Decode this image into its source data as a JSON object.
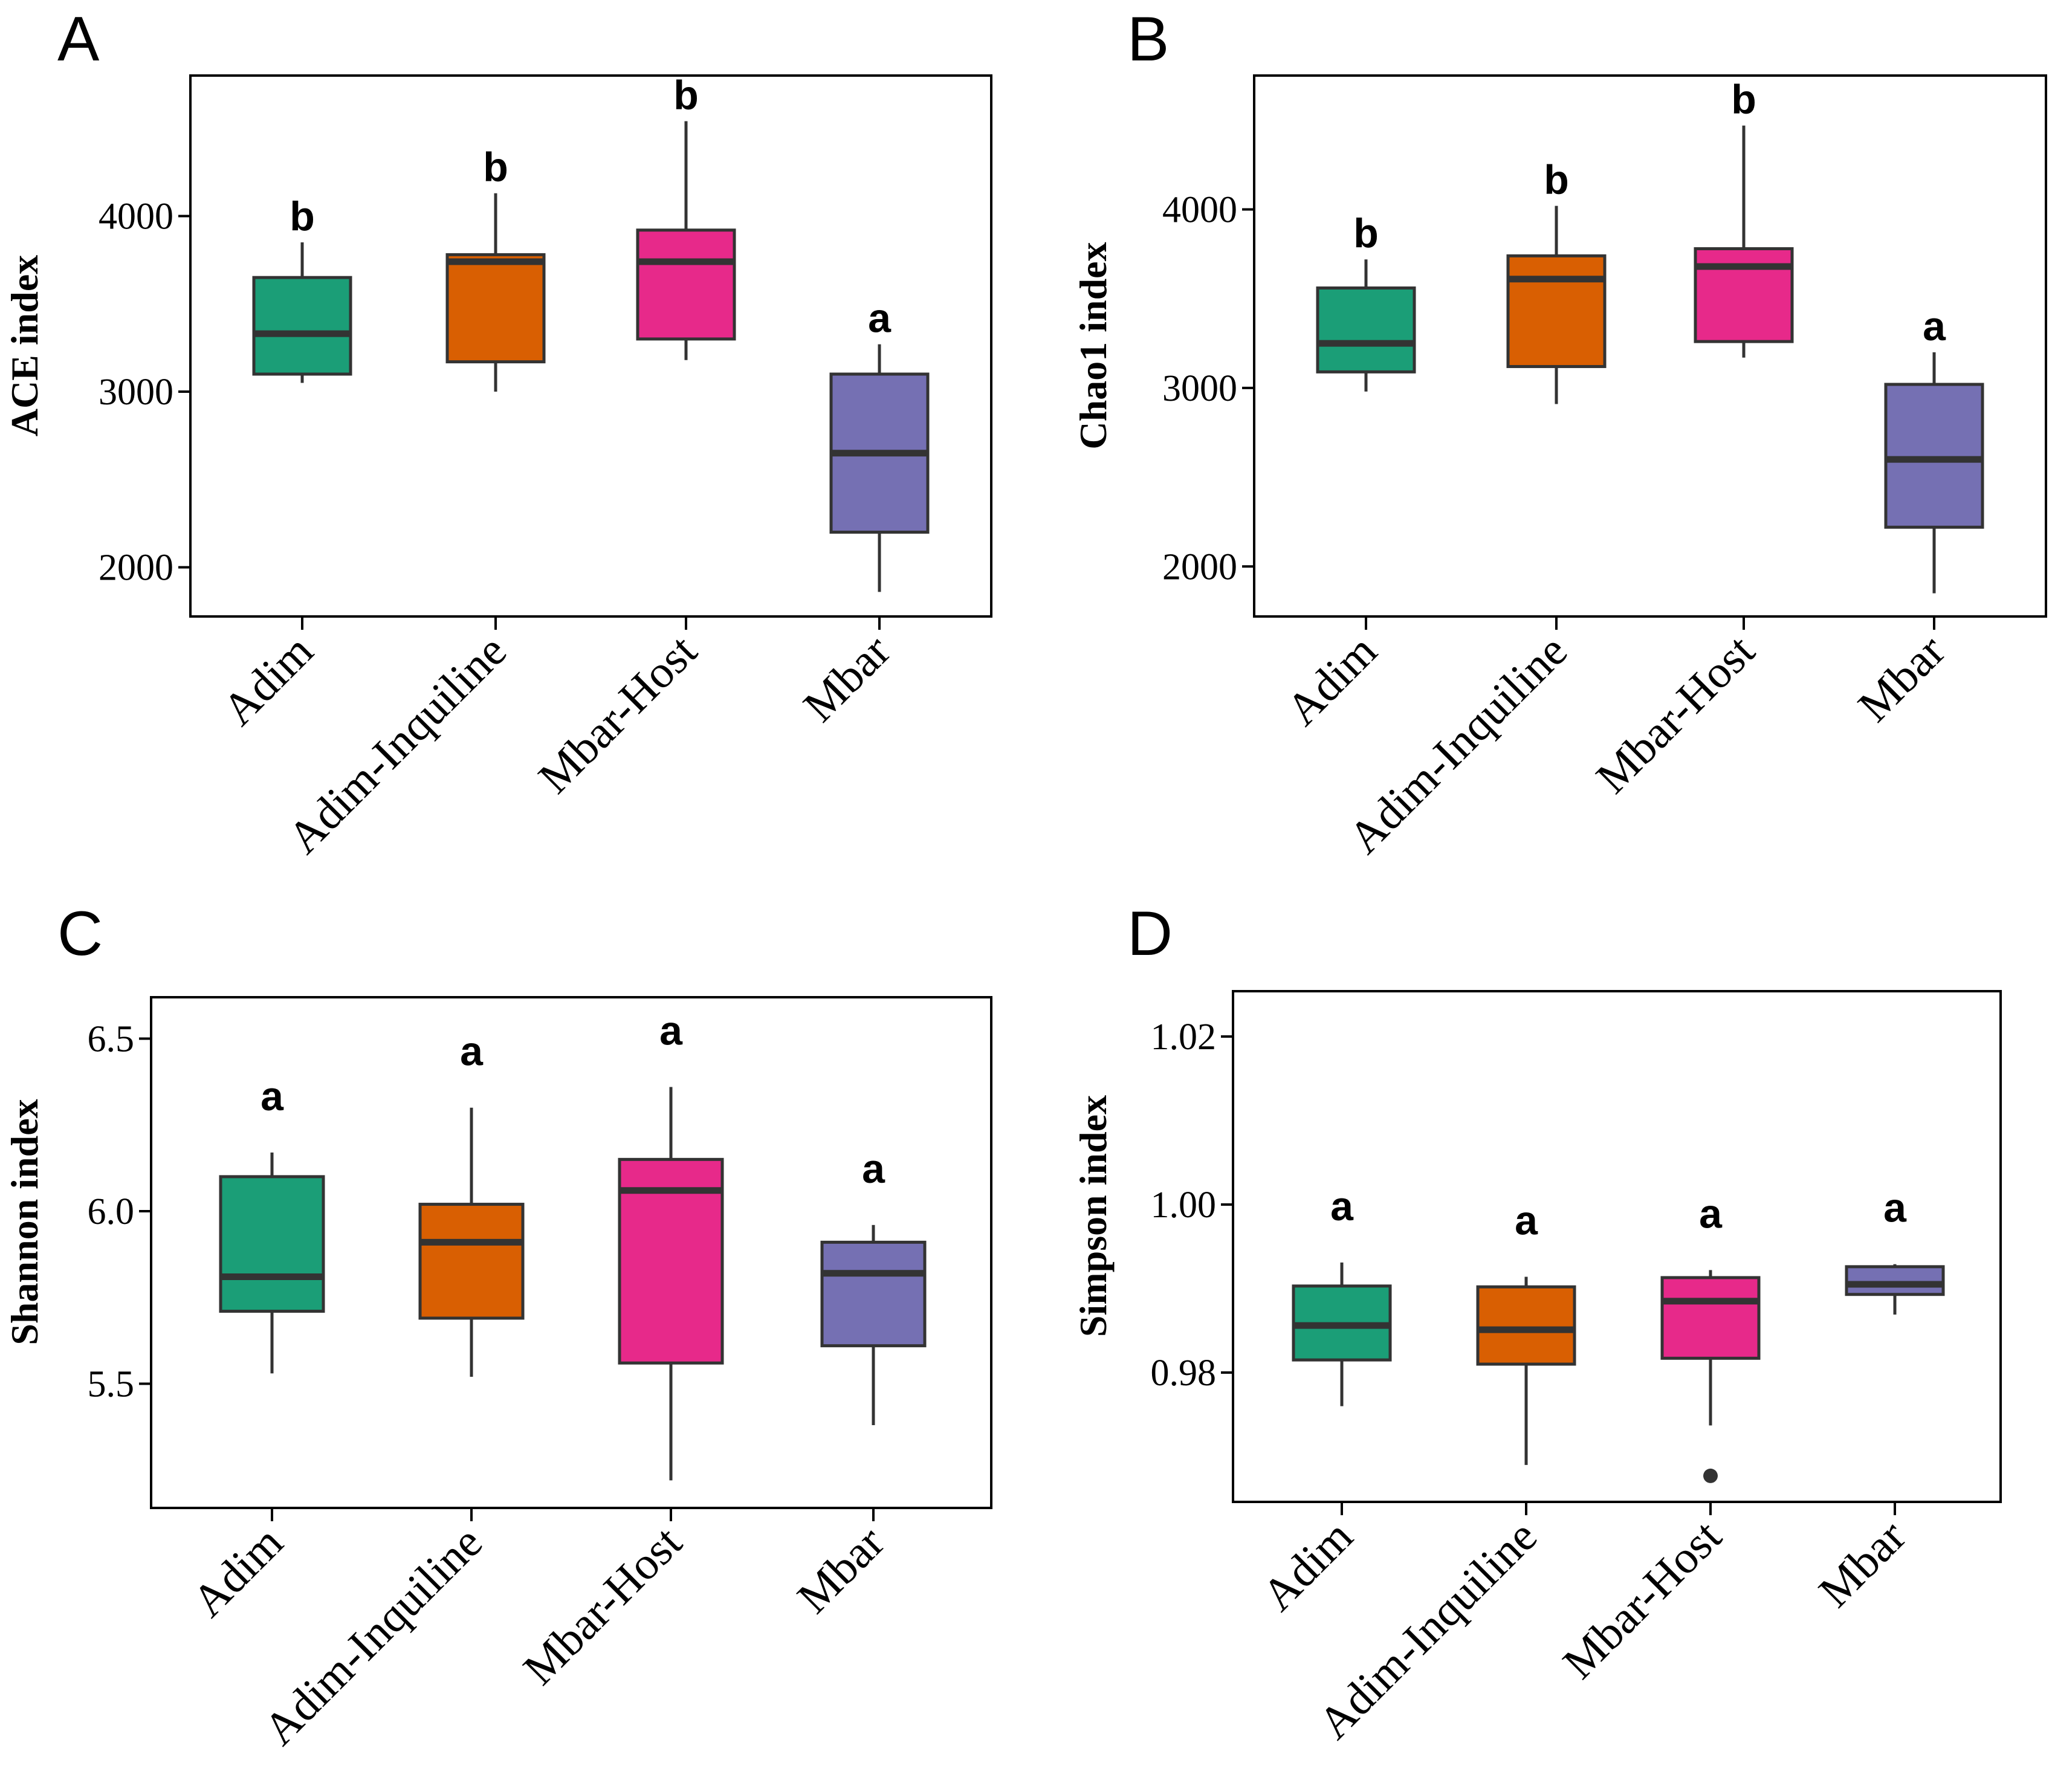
{
  "colors": {
    "Adim": "#1B9E77",
    "Adim-Inquiline": "#D95F02",
    "Mbar-Host": "#E7298A",
    "Mbar": "#7570B3",
    "stroke": "#333333"
  },
  "chart_data": [
    {
      "panel": "A",
      "type": "boxplot",
      "ylabel": "ACE index",
      "categories": [
        "Adim",
        "Adim-Inquiline",
        "Mbar-Host",
        "Mbar"
      ],
      "ylim": [
        1720,
        4800
      ],
      "yticks": [
        2000,
        3000,
        4000
      ],
      "ytick_labels": [
        "2000",
        "3000",
        "4000"
      ],
      "boxes": [
        {
          "group": "Adim",
          "whisker_low": 3050,
          "q1": 3100,
          "median": 3330,
          "q3": 3650,
          "whisker_high": 3850,
          "outliers": [],
          "letter": "b"
        },
        {
          "group": "Adim-Inquiline",
          "whisker_low": 3000,
          "q1": 3170,
          "median": 3740,
          "q3": 3780,
          "whisker_high": 4130,
          "outliers": [],
          "letter": "b"
        },
        {
          "group": "Mbar-Host",
          "whisker_low": 3180,
          "q1": 3300,
          "median": 3740,
          "q3": 3920,
          "whisker_high": 4540,
          "outliers": [],
          "letter": "b"
        },
        {
          "group": "Mbar",
          "whisker_low": 1860,
          "q1": 2200,
          "median": 2650,
          "q3": 3100,
          "whisker_high": 3270,
          "outliers": [],
          "letter": "a"
        }
      ]
    },
    {
      "panel": "B",
      "type": "boxplot",
      "ylabel": "Chao1 index",
      "categories": [
        "Adim",
        "Adim-Inquiline",
        "Mbar-Host",
        "Mbar"
      ],
      "ylim": [
        1720,
        4750
      ],
      "yticks": [
        2000,
        3000,
        4000
      ],
      "ytick_labels": [
        "2000",
        "3000",
        "4000"
      ],
      "boxes": [
        {
          "group": "Adim",
          "whisker_low": 2980,
          "q1": 3090,
          "median": 3250,
          "q3": 3560,
          "whisker_high": 3720,
          "outliers": [],
          "letter": "b"
        },
        {
          "group": "Adim-Inquiline",
          "whisker_low": 2910,
          "q1": 3120,
          "median": 3610,
          "q3": 3740,
          "whisker_high": 4020,
          "outliers": [],
          "letter": "b"
        },
        {
          "group": "Mbar-Host",
          "whisker_low": 3170,
          "q1": 3260,
          "median": 3680,
          "q3": 3780,
          "whisker_high": 4470,
          "outliers": [],
          "letter": "b"
        },
        {
          "group": "Mbar",
          "whisker_low": 1850,
          "q1": 2220,
          "median": 2600,
          "q3": 3020,
          "whisker_high": 3200,
          "outliers": [],
          "letter": "a"
        }
      ]
    },
    {
      "panel": "C",
      "type": "boxplot",
      "ylabel": "Shannon index",
      "categories": [
        "Adim",
        "Adim-Inquiline",
        "Mbar-Host",
        "Mbar"
      ],
      "ylim": [
        5.14,
        6.62
      ],
      "yticks": [
        5.5,
        6.0,
        6.5
      ],
      "ytick_labels": [
        "5.5",
        "6.0",
        "6.5"
      ],
      "boxes": [
        {
          "group": "Adim",
          "whisker_low": 5.53,
          "q1": 5.71,
          "median": 5.81,
          "q3": 6.1,
          "whisker_high": 6.17,
          "outliers": [],
          "letter": "a"
        },
        {
          "group": "Adim-Inquiline",
          "whisker_low": 5.52,
          "q1": 5.69,
          "median": 5.91,
          "q3": 6.02,
          "whisker_high": 6.3,
          "outliers": [],
          "letter": "a"
        },
        {
          "group": "Mbar-Host",
          "whisker_low": 5.22,
          "q1": 5.56,
          "median": 6.06,
          "q3": 6.15,
          "whisker_high": 6.36,
          "outliers": [],
          "letter": "a"
        },
        {
          "group": "Mbar",
          "whisker_low": 5.38,
          "q1": 5.61,
          "median": 5.82,
          "q3": 5.91,
          "whisker_high": 5.96,
          "outliers": [],
          "letter": "a"
        }
      ]
    },
    {
      "panel": "D",
      "type": "boxplot",
      "ylabel": "Simpson index",
      "categories": [
        "Adim",
        "Adim-Inquiline",
        "Mbar-Host",
        "Mbar"
      ],
      "ylim": [
        0.9646,
        1.0254
      ],
      "yticks": [
        0.98,
        1.0,
        1.02
      ],
      "ytick_labels": [
        "0.98",
        "1.00",
        "1.02"
      ],
      "boxes": [
        {
          "group": "Adim",
          "whisker_low": 0.976,
          "q1": 0.9815,
          "median": 0.9856,
          "q3": 0.9903,
          "whisker_high": 0.9931,
          "outliers": [],
          "letter": "a"
        },
        {
          "group": "Adim-Inquiline",
          "whisker_low": 0.969,
          "q1": 0.981,
          "median": 0.9851,
          "q3": 0.9902,
          "whisker_high": 0.9914,
          "outliers": [],
          "letter": "a"
        },
        {
          "group": "Mbar-Host",
          "whisker_low": 0.9737,
          "q1": 0.9817,
          "median": 0.9885,
          "q3": 0.9913,
          "whisker_high": 0.9922,
          "outliers": [
            0.9677
          ],
          "letter": "a"
        },
        {
          "group": "Mbar",
          "whisker_low": 0.9869,
          "q1": 0.9893,
          "median": 0.9905,
          "q3": 0.9926,
          "whisker_high": 0.9929,
          "outliers": [],
          "letter": "a"
        }
      ]
    }
  ]
}
